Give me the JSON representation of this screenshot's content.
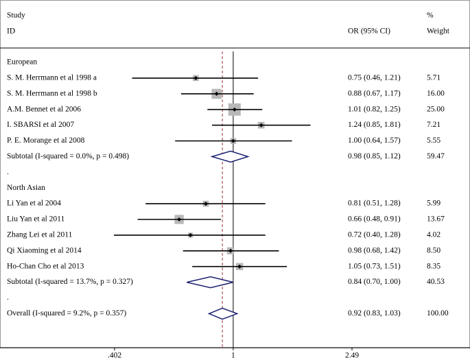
{
  "chart_data": {
    "type": "forest",
    "xscale": "log",
    "headers": {
      "study": "Study",
      "id": "ID",
      "ci": "OR (95% CI)",
      "pct": "%",
      "weight": "Weight"
    },
    "xlim": [
      0.402,
      2.49
    ],
    "xticks": [
      {
        "value": 0.402,
        "label": ".402"
      },
      1,
      2.49
    ],
    "null_line": 1,
    "square_color": "#b8b8b8",
    "diamond_color": "#1a1f6e",
    "overall_line_color": "#a0303a",
    "rows": [
      {
        "kind": "group",
        "label": "European"
      },
      {
        "kind": "study",
        "label": "S. M. Herrmann et al 1998 a",
        "or": 0.75,
        "lower": 0.46,
        "upper": 1.21,
        "ci_label": "0.75 (0.46, 1.21)",
        "weight": 5.71
      },
      {
        "kind": "study",
        "label": "S. M. Herrmann et al 1998 b",
        "or": 0.88,
        "lower": 0.67,
        "upper": 1.17,
        "ci_label": "0.88 (0.67, 1.17)",
        "weight": 16,
        "weight_label": "16.00"
      },
      {
        "kind": "study",
        "label": "A.M. Bennet et al  2006",
        "or": 1.01,
        "lower": 0.82,
        "upper": 1.25,
        "ci_label": "1.01 (0.82, 1.25)",
        "weight": 25,
        "weight_label": "25.00"
      },
      {
        "kind": "study",
        "label": "I. SBARSI et al 2007",
        "or": 1.24,
        "lower": 0.85,
        "upper": 1.81,
        "ci_label": "1.24 (0.85, 1.81)",
        "weight": 7.21
      },
      {
        "kind": "study",
        "label": "P. E. Morange et al 2008",
        "or": 1,
        "lower": 0.64,
        "upper": 1.57,
        "ci_label": "1.00 (0.64, 1.57)",
        "weight": 5.55
      },
      {
        "kind": "subtotal",
        "label": "Subtotal  (I-squared = 0.0%, p = 0.498)",
        "or": 0.98,
        "lower": 0.85,
        "upper": 1.12,
        "ci_label": "0.98 (0.85, 1.12)",
        "weight": 59.47
      },
      {
        "kind": "spacer",
        "label": "."
      },
      {
        "kind": "group",
        "label": "North Asian"
      },
      {
        "kind": "study",
        "label": "Li Yan et al 2004",
        "or": 0.81,
        "lower": 0.51,
        "upper": 1.28,
        "ci_label": "0.81 (0.51, 1.28)",
        "weight": 5.99
      },
      {
        "kind": "study",
        "label": "Liu Yan et al 2011",
        "or": 0.66,
        "lower": 0.48,
        "upper": 0.91,
        "ci_label": "0.66 (0.48, 0.91)",
        "weight": 13.67
      },
      {
        "kind": "study",
        "label": "Zhang Lei et al 2011",
        "or": 0.72,
        "lower": 0.4,
        "upper": 1.28,
        "ci_label": "0.72 (0.40, 1.28)",
        "weight": 4.02
      },
      {
        "kind": "study",
        "label": "Qi Xiaoming et al 2014",
        "or": 0.98,
        "lower": 0.68,
        "upper": 1.42,
        "ci_label": "0.98 (0.68, 1.42)",
        "weight": 8.5,
        "weight_label": "8.50"
      },
      {
        "kind": "study",
        "label": "Ho-Chan Cho et al 2013",
        "or": 1.05,
        "lower": 0.73,
        "upper": 1.51,
        "ci_label": "1.05 (0.73, 1.51)",
        "weight": 8.35
      },
      {
        "kind": "subtotal",
        "label": "Subtotal  (I-squared = 13.7%, p = 0.327)",
        "or": 0.84,
        "lower": 0.7,
        "upper": 1,
        "ci_label": "0.84 (0.70, 1.00)",
        "weight": 40.53
      },
      {
        "kind": "spacer",
        "label": "."
      },
      {
        "kind": "overall",
        "label": "Overall  (I-squared = 9.2%, p = 0.357)",
        "or": 0.92,
        "lower": 0.83,
        "upper": 1.03,
        "ci_label": "0.92 (0.83, 1.03)",
        "weight": 100,
        "weight_label": "100.00"
      }
    ]
  }
}
